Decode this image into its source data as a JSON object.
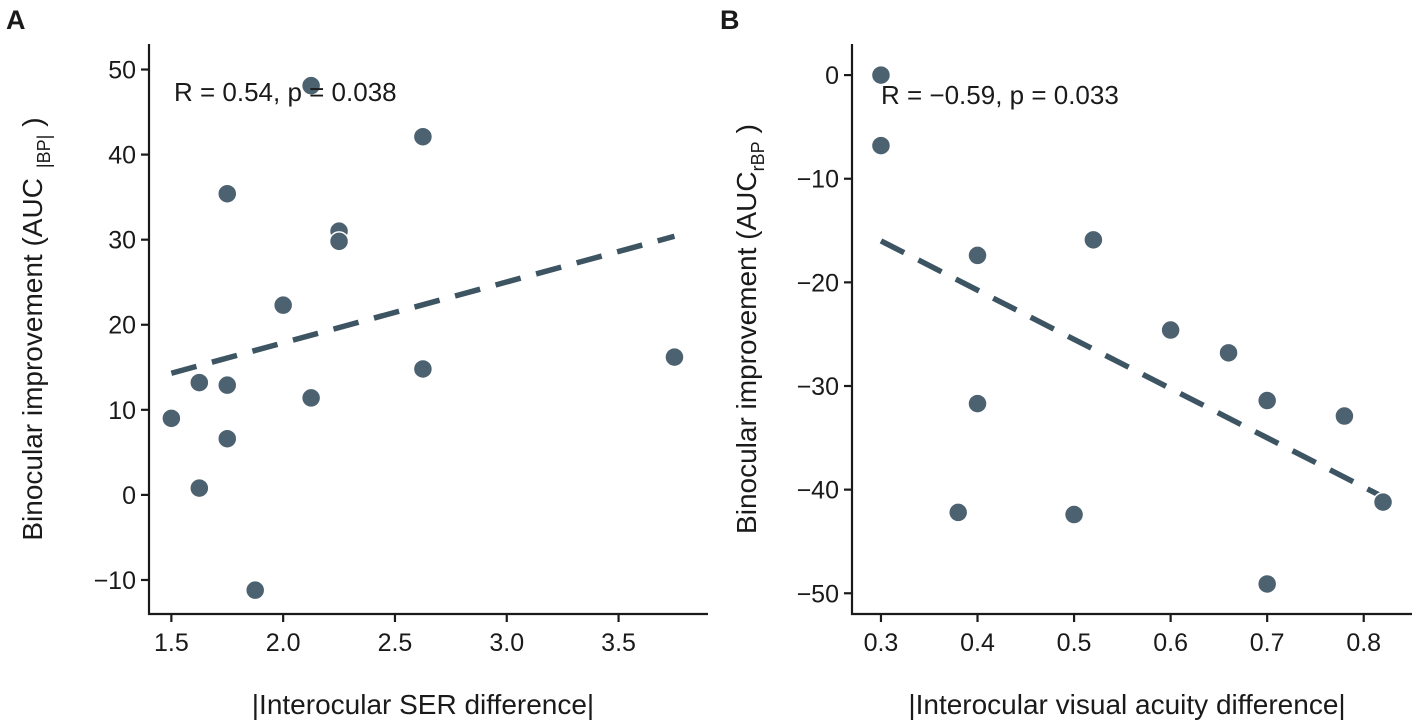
{
  "colors": {
    "point": "#4d6270",
    "fit_line": "#3d5563",
    "axis": "#1a1a1a"
  },
  "chart_data": [
    {
      "type": "scatter",
      "panel_label": "A",
      "annotation": "R = 0.54, p = 0.038",
      "xlabel": "|Interocular SER difference|",
      "ylabel_main": "Binocular improvement (AUC",
      "ylabel_sub": "|BP|",
      "ylabel_close": ")",
      "xlim": [
        1.4,
        3.9
      ],
      "ylim": [
        -14,
        53
      ],
      "xticks": [
        1.5,
        2.0,
        2.5,
        3.0,
        3.5
      ],
      "xtick_labels": [
        "1.5",
        "2.0",
        "2.5",
        "3.0",
        "3.5"
      ],
      "yticks": [
        -10,
        0,
        10,
        20,
        30,
        40,
        50
      ],
      "ytick_labels": [
        "−10",
        "0",
        "10",
        "20",
        "30",
        "40",
        "50"
      ],
      "points": [
        {
          "x": 1.5,
          "y": 9.0
        },
        {
          "x": 1.625,
          "y": 13.2
        },
        {
          "x": 1.625,
          "y": 0.8
        },
        {
          "x": 1.75,
          "y": 35.4
        },
        {
          "x": 1.75,
          "y": 12.9
        },
        {
          "x": 1.75,
          "y": 6.6
        },
        {
          "x": 1.875,
          "y": -11.2
        },
        {
          "x": 2.0,
          "y": 22.3
        },
        {
          "x": 2.125,
          "y": 48.1
        },
        {
          "x": 2.125,
          "y": 11.4
        },
        {
          "x": 2.25,
          "y": 31.0
        },
        {
          "x": 2.25,
          "y": 29.8
        },
        {
          "x": 2.625,
          "y": 42.1
        },
        {
          "x": 2.625,
          "y": 14.8
        },
        {
          "x": 3.75,
          "y": 16.2
        }
      ],
      "fit_line": {
        "x": [
          1.5,
          3.75
        ],
        "y": [
          14.3,
          30.4
        ]
      }
    },
    {
      "type": "scatter",
      "panel_label": "B",
      "annotation": "R = −0.59, p = 0.033",
      "xlabel": "|Interocular visual acuity difference|",
      "ylabel_main": "Binocular improvement (AUC",
      "ylabel_sub": "rBP",
      "ylabel_close": ")",
      "xlim": [
        0.27,
        0.85
      ],
      "ylim": [
        -52,
        3
      ],
      "xticks": [
        0.3,
        0.4,
        0.5,
        0.6,
        0.7,
        0.8
      ],
      "xtick_labels": [
        "0.3",
        "0.4",
        "0.5",
        "0.6",
        "0.7",
        "0.8"
      ],
      "yticks": [
        -50,
        -40,
        -30,
        -20,
        -10,
        0
      ],
      "ytick_labels": [
        "−50",
        "−40",
        "−30",
        "−20",
        "−10",
        "0"
      ],
      "points": [
        {
          "x": 0.3,
          "y": 0.0
        },
        {
          "x": 0.3,
          "y": -6.8
        },
        {
          "x": 0.38,
          "y": -42.2
        },
        {
          "x": 0.4,
          "y": -17.4
        },
        {
          "x": 0.4,
          "y": -31.7
        },
        {
          "x": 0.5,
          "y": -42.4
        },
        {
          "x": 0.52,
          "y": -15.9
        },
        {
          "x": 0.6,
          "y": -24.6
        },
        {
          "x": 0.66,
          "y": -26.8
        },
        {
          "x": 0.7,
          "y": -31.4
        },
        {
          "x": 0.7,
          "y": -49.1
        },
        {
          "x": 0.78,
          "y": -32.9
        },
        {
          "x": 0.82,
          "y": -41.2
        }
      ],
      "fit_line": {
        "x": [
          0.3,
          0.82
        ],
        "y": [
          -16.0,
          -40.7
        ]
      }
    }
  ]
}
